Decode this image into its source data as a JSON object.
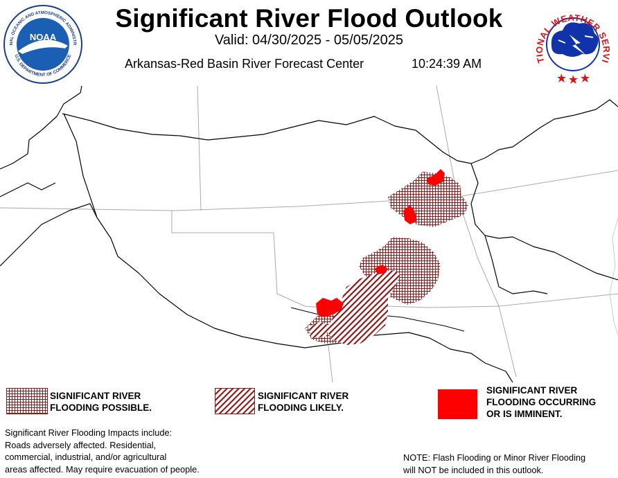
{
  "header": {
    "title": "Significant River Flood Outlook",
    "valid": "Valid: 04/30/2025 - 05/05/2025",
    "center": "Arkansas-Red Basin River Forecast Center",
    "time": "10:24:39 AM"
  },
  "logos": {
    "noaa_text": "NOAA",
    "noaa_ring_top": "NATIONAL OCEANIC AND ATMOSPHERIC ADMINISTRATION",
    "noaa_ring_bottom": "U.S. DEPARTMENT OF COMMERCE",
    "nws_ring": "NATIONAL WEATHER SERVICE"
  },
  "legend": [
    {
      "id": "possible",
      "pattern": "grid",
      "line1": "SIGNIFICANT RIVER",
      "line2": "FLOODING POSSIBLE.",
      "line3": ""
    },
    {
      "id": "likely",
      "pattern": "hatch",
      "line1": "SIGNIFICANT RIVER",
      "line2": "FLOODING LIKELY.",
      "line3": ""
    },
    {
      "id": "occurring",
      "pattern": "solid",
      "line1": "SIGNIFICANT RIVER",
      "line2": "FLOODING OCCURRING",
      "line3": "OR IS IMMINENT."
    }
  ],
  "impacts": {
    "line1": "Significant River Flooding Impacts include:",
    "line2": "Roads adversely affected. Residential,",
    "line3": "commercial, industrial, and/or agricultural",
    "line4": "areas affected. May require evacuation of people."
  },
  "note": {
    "line1": "NOTE: Flash Flooding or Minor River Flooding",
    "line2": "will NOT be included in this outlook."
  },
  "colors": {
    "flood_pattern": "#8b1a1a",
    "occurring": "#ff0000",
    "noaa_blue": "#1a5fb4",
    "nws_blue": "#1133aa",
    "state_lines": "#aaaaaa",
    "basin_outline": "#000000"
  }
}
